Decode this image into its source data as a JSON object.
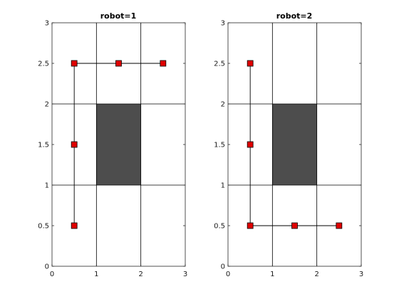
{
  "chart_data": [
    {
      "type": "scatter",
      "title": "robot=1",
      "xlabel": "",
      "ylabel": "",
      "xlim": [
        0,
        3
      ],
      "ylim": [
        0,
        3
      ],
      "xticks": [
        "0",
        "1",
        "2",
        "3"
      ],
      "yticks": [
        "0",
        "0.5",
        "1",
        "1.5",
        "2",
        "2.5",
        "3"
      ],
      "grid_lines_x": [
        1,
        2
      ],
      "grid_lines_y": [
        1,
        2
      ],
      "obstacle": {
        "x": [
          1,
          2
        ],
        "y": [
          1,
          2
        ],
        "color": "#4d4d4d"
      },
      "path": [
        [
          0.5,
          0.5
        ],
        [
          0.5,
          1.5
        ],
        [
          0.5,
          2.5
        ],
        [
          1.5,
          2.5
        ],
        [
          2.5,
          2.5
        ]
      ],
      "points": [
        {
          "x": 0.5,
          "y": 2.5
        },
        {
          "x": 1.5,
          "y": 2.5
        },
        {
          "x": 2.5,
          "y": 2.5
        },
        {
          "x": 0.5,
          "y": 1.5
        },
        {
          "x": 0.5,
          "y": 0.5
        }
      ],
      "marker_color": "#e00000"
    },
    {
      "type": "scatter",
      "title": "robot=2",
      "xlabel": "",
      "ylabel": "",
      "xlim": [
        0,
        3
      ],
      "ylim": [
        0,
        3
      ],
      "xticks": [
        "0",
        "1",
        "2",
        "3"
      ],
      "yticks": [
        "0",
        "0.5",
        "1",
        "1.5",
        "2",
        "2.5",
        "3"
      ],
      "grid_lines_x": [
        1,
        2
      ],
      "grid_lines_y": [
        1,
        2
      ],
      "obstacle": {
        "x": [
          1,
          2
        ],
        "y": [
          1,
          2
        ],
        "color": "#4d4d4d"
      },
      "path": [
        [
          0.5,
          2.5
        ],
        [
          0.5,
          1.5
        ],
        [
          0.5,
          0.5
        ],
        [
          1.5,
          0.5
        ],
        [
          2.5,
          0.5
        ]
      ],
      "points": [
        {
          "x": 0.5,
          "y": 2.5
        },
        {
          "x": 0.5,
          "y": 1.5
        },
        {
          "x": 0.5,
          "y": 0.5
        },
        {
          "x": 1.5,
          "y": 0.5
        },
        {
          "x": 2.5,
          "y": 0.5
        }
      ],
      "marker_color": "#e00000"
    }
  ]
}
